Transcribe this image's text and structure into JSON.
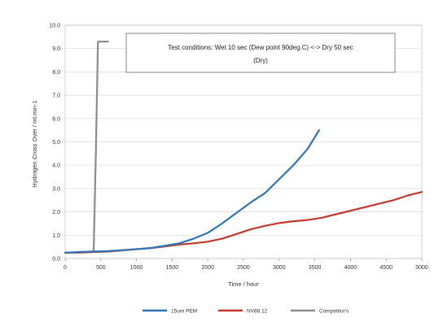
{
  "chart_data": {
    "type": "line",
    "title": "",
    "xlabel": "Time / hour",
    "ylabel": "Hydrogen Cross Over / ml.min-1",
    "xlim": [
      0,
      5000
    ],
    "ylim": [
      0,
      10
    ],
    "x_ticks": [
      "0",
      "500",
      "1000",
      "1500",
      "2000",
      "2500",
      "3000",
      "3500",
      "4000",
      "4500",
      "5000"
    ],
    "y_ticks": [
      "0.0",
      "1.0",
      "2.0",
      "3.0",
      "4.0",
      "5.0",
      "6.0",
      "7.0",
      "8.0",
      "9.0",
      "10.0"
    ],
    "grid": "horizontal",
    "legend_position": "bottom",
    "annotation": {
      "line1": "Test conditions:  Wet 10 sec (Dew point 90deg.C) <-> Dry 50 sec",
      "line2": "(Dry)"
    },
    "series": [
      {
        "name": "15um PEM",
        "color": "#2e75b6",
        "x": [
          0,
          200,
          400,
          600,
          800,
          1000,
          1200,
          1400,
          1600,
          1800,
          2000,
          2200,
          2400,
          2600,
          2800,
          3000,
          3200,
          3400,
          3560
        ],
        "y": [
          0.25,
          0.28,
          0.3,
          0.32,
          0.36,
          0.4,
          0.45,
          0.55,
          0.65,
          0.85,
          1.1,
          1.5,
          1.95,
          2.4,
          2.8,
          3.4,
          4.0,
          4.7,
          5.5
        ]
      },
      {
        "name": "NV88.12",
        "color": "#c0392b",
        "x": [
          0,
          200,
          400,
          600,
          800,
          1000,
          1200,
          1400,
          1600,
          1800,
          2000,
          2200,
          2400,
          2600,
          2800,
          3000,
          3200,
          3400,
          3600,
          3800,
          4000,
          4200,
          4400,
          4600,
          4800,
          5000
        ],
        "y": [
          0.25,
          0.25,
          0.28,
          0.3,
          0.35,
          0.4,
          0.45,
          0.52,
          0.6,
          0.65,
          0.72,
          0.85,
          1.05,
          1.25,
          1.4,
          1.52,
          1.6,
          1.65,
          1.75,
          1.9,
          2.05,
          2.2,
          2.35,
          2.5,
          2.7,
          2.85
        ]
      },
      {
        "name": "Competitor's",
        "color": "#8c8c8c",
        "x": [
          0,
          200,
          400,
          430,
          460,
          600
        ],
        "y": [
          0.25,
          0.27,
          0.3,
          4.5,
          9.3,
          9.3
        ]
      }
    ]
  }
}
